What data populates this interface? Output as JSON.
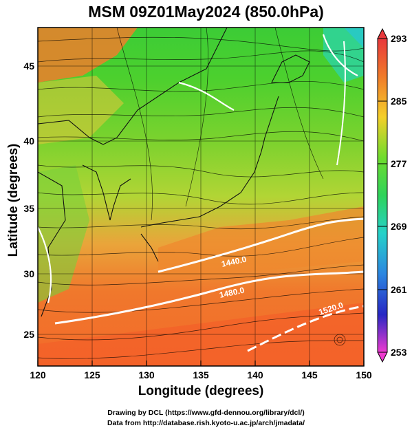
{
  "title": "MSM 09Z01May2024 (850.0hPa)",
  "xlabel": "Longitude (degrees)",
  "ylabel": "Latitude  (degrees)",
  "x_ticks": [
    "120",
    "125",
    "130",
    "135",
    "140",
    "145",
    "150"
  ],
  "y_ticks": [
    "25",
    "30",
    "35",
    "40",
    "45"
  ],
  "colorbar": {
    "ticks": [
      "293",
      "285",
      "277",
      "269",
      "261",
      "253"
    ],
    "colors": [
      "#e8383c",
      "#f07a2a",
      "#f4b92a",
      "#c9e035",
      "#43d02f",
      "#2ad2a4",
      "#2c9be6",
      "#1f43cf",
      "#7b1fb3",
      "#ee3bd0"
    ]
  },
  "contours": [
    "1440.0",
    "1480.0",
    "1520.0"
  ],
  "credits": {
    "line1": "Drawing by DCL (https://www.gfd-dennou.org/library/dcl/)",
    "line2": "Data from http://database.rish.kyoto-u.ac.jp/arch/jmadata/"
  },
  "chart_data": {
    "type": "heatmap",
    "title": "MSM 09Z01May2024 (850.0hPa)",
    "xlabel": "Longitude (degrees)",
    "ylabel": "Latitude  (degrees)",
    "xlim": [
      120,
      150
    ],
    "ylim": [
      22.4,
      47.6
    ],
    "colorbar_range": [
      253,
      293
    ],
    "contour_levels": [
      1440,
      1480,
      1520
    ],
    "grid": true
  }
}
